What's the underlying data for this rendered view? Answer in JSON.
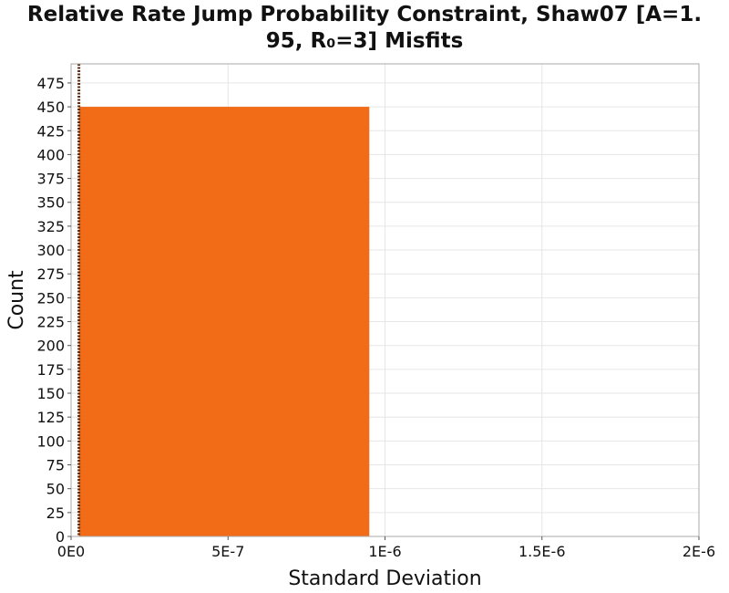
{
  "chart_data": {
    "type": "bar",
    "title_line1": "Relative Rate Jump Probability Constraint, Shaw07 [A=1.",
    "title_line2": "95, R₀=3] Misfits",
    "xlabel": "Standard Deviation",
    "ylabel": "Count",
    "xlim": [
      0,
      2e-06
    ],
    "ylim": [
      0,
      495
    ],
    "x_ticks": [
      {
        "value": 0,
        "label": "0E0"
      },
      {
        "value": 5e-07,
        "label": "5E-7"
      },
      {
        "value": 1e-06,
        "label": "1E-6"
      },
      {
        "value": 1.5e-06,
        "label": "1.5E-6"
      },
      {
        "value": 2e-06,
        "label": "2E-6"
      }
    ],
    "y_ticks": [
      0,
      25,
      50,
      75,
      100,
      125,
      150,
      175,
      200,
      225,
      250,
      275,
      300,
      325,
      350,
      375,
      400,
      425,
      450,
      475
    ],
    "bins": [
      {
        "x0": 2.5e-08,
        "x1": 9.5e-07,
        "count": 450
      }
    ],
    "reference_line": {
      "x": 2.5e-08,
      "style": "dotted"
    },
    "grid": true,
    "colors": {
      "bar": "#f26b16",
      "reference_line": "#5a2a10",
      "grid": "#e6e6e6",
      "frame": "#aaaaaa"
    }
  }
}
